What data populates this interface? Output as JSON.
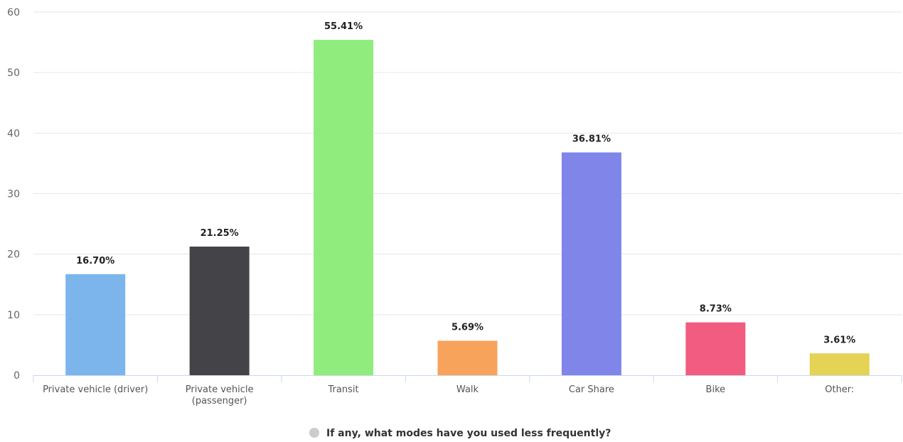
{
  "chart_data": {
    "type": "bar",
    "title": "",
    "xlabel": "",
    "ylabel": "",
    "ylim": [
      0,
      60
    ],
    "yticks": [
      0,
      10,
      20,
      30,
      40,
      50,
      60
    ],
    "grid": true,
    "legend_position": "bottom-center",
    "categories": [
      "Private vehicle (driver)",
      "Private vehicle (passenger)",
      "Transit",
      "Walk",
      "Car Share",
      "Bike",
      "Other:"
    ],
    "category_label_lines": [
      [
        "Private vehicle (driver)"
      ],
      [
        "Private vehicle",
        "(passenger)"
      ],
      [
        "Transit"
      ],
      [
        "Walk"
      ],
      [
        "Car Share"
      ],
      [
        "Bike"
      ],
      [
        "Other:"
      ]
    ],
    "values": [
      16.7,
      21.25,
      55.41,
      5.69,
      36.81,
      8.73,
      3.61
    ],
    "data_labels": [
      "16.70%",
      "21.25%",
      "55.41%",
      "5.69%",
      "36.81%",
      "8.73%",
      "3.61%"
    ],
    "bar_colors": [
      "#7cb5ec",
      "#434348",
      "#90ed7d",
      "#f7a35c",
      "#8085e9",
      "#f15c80",
      "#e4d354"
    ],
    "series": [
      {
        "name": "If any, what modes have you used less frequently?",
        "values": [
          16.7,
          21.25,
          55.41,
          5.69,
          36.81,
          8.73,
          3.61
        ]
      }
    ],
    "legend_marker_color": "#cccccc"
  }
}
